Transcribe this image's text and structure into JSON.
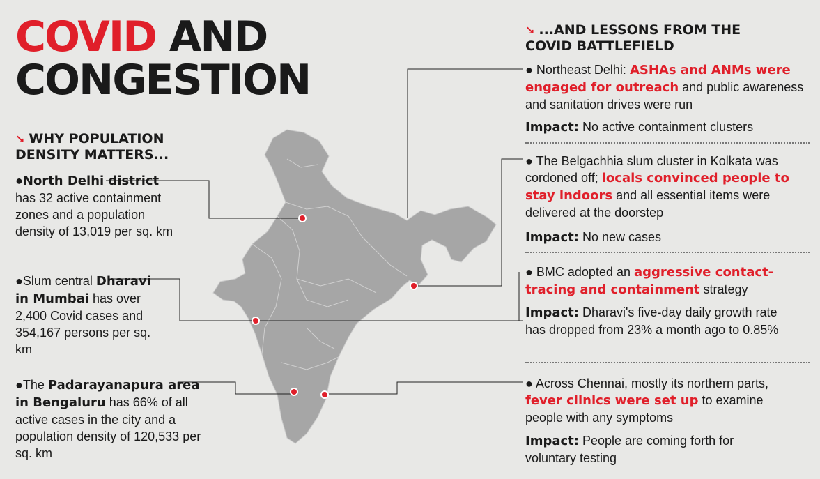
{
  "title": {
    "red": "COVID",
    "rest": " AND",
    "line2": "CONGESTION"
  },
  "left": {
    "heading_line1": "WHY POPULATION",
    "heading_line2": "DENSITY MATTERS...",
    "items": [
      {
        "bold": "North Delhi district",
        "text": " has 32 active containment zones and a population density of 13,019 per sq. km"
      },
      {
        "pre": "Slum central ",
        "bold": "Dharavi in Mumbai",
        "text": " has over 2,400 Covid cases and 354,167 persons per sq. km"
      },
      {
        "pre": "The ",
        "bold": "Padarayanapura area in Bengaluru",
        "text": " has 66% of all active cases in the city and a population density of 120,533 per sq. km"
      }
    ]
  },
  "right": {
    "heading_line1": "...AND LESSONS FROM THE",
    "heading_line2": "COVID BATTLEFIELD",
    "impact_label": "Impact:",
    "items": [
      {
        "pre": "Northeast Delhi: ",
        "hl": "ASHAs and ANMs were engaged for outreach",
        "post": " and public awareness and sanitation drives were run",
        "impact": " No active containment clusters"
      },
      {
        "pre": "The Belgachhia slum cluster in Kolkata was cordoned off; ",
        "hl": "locals convinced people to stay indoors",
        "post": " and all essential items were delivered at the doorstep",
        "impact": " No new cases"
      },
      {
        "pre": "BMC adopted an ",
        "hl": "aggressive contact-tracing and containment",
        "post": " strategy",
        "impact": " Dharavi's five-day daily growth rate has dropped from 23% a month ago to 0.85%"
      },
      {
        "pre": "Across Chennai, mostly its northern parts, ",
        "hl": "fever clinics were set up",
        "post": " to examine people with any symptoms",
        "impact": " People are coming forth for voluntary testing"
      }
    ]
  },
  "colors": {
    "accent": "#e01f2a",
    "map": "#a6a6a6",
    "background": "#e8e8e6"
  }
}
